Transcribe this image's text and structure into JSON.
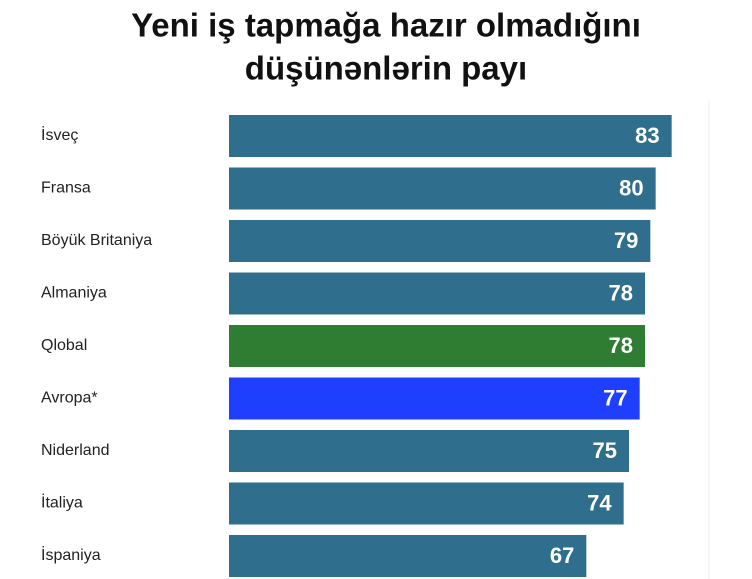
{
  "chart_data": {
    "type": "bar",
    "orientation": "horizontal",
    "title": [
      "Yeni iş tapmağa hazır olmadığını",
      "düşünənlərin payı"
    ],
    "categories": [
      "İsveç",
      "Fransa",
      "Böyük Britaniya",
      "Almaniya",
      "Qlobal",
      "Avropa*",
      "Niderland",
      "İtaliya",
      "İspaniya"
    ],
    "values": [
      83,
      80,
      79,
      78,
      78,
      77,
      75,
      74,
      67
    ],
    "colors": [
      "#2f6e8c",
      "#2f6e8c",
      "#2f6e8c",
      "#2f6e8c",
      "#2e7d32",
      "#1f3fff",
      "#2f6e8c",
      "#2f6e8c",
      "#2f6e8c"
    ],
    "xlim": [
      0,
      90
    ]
  }
}
